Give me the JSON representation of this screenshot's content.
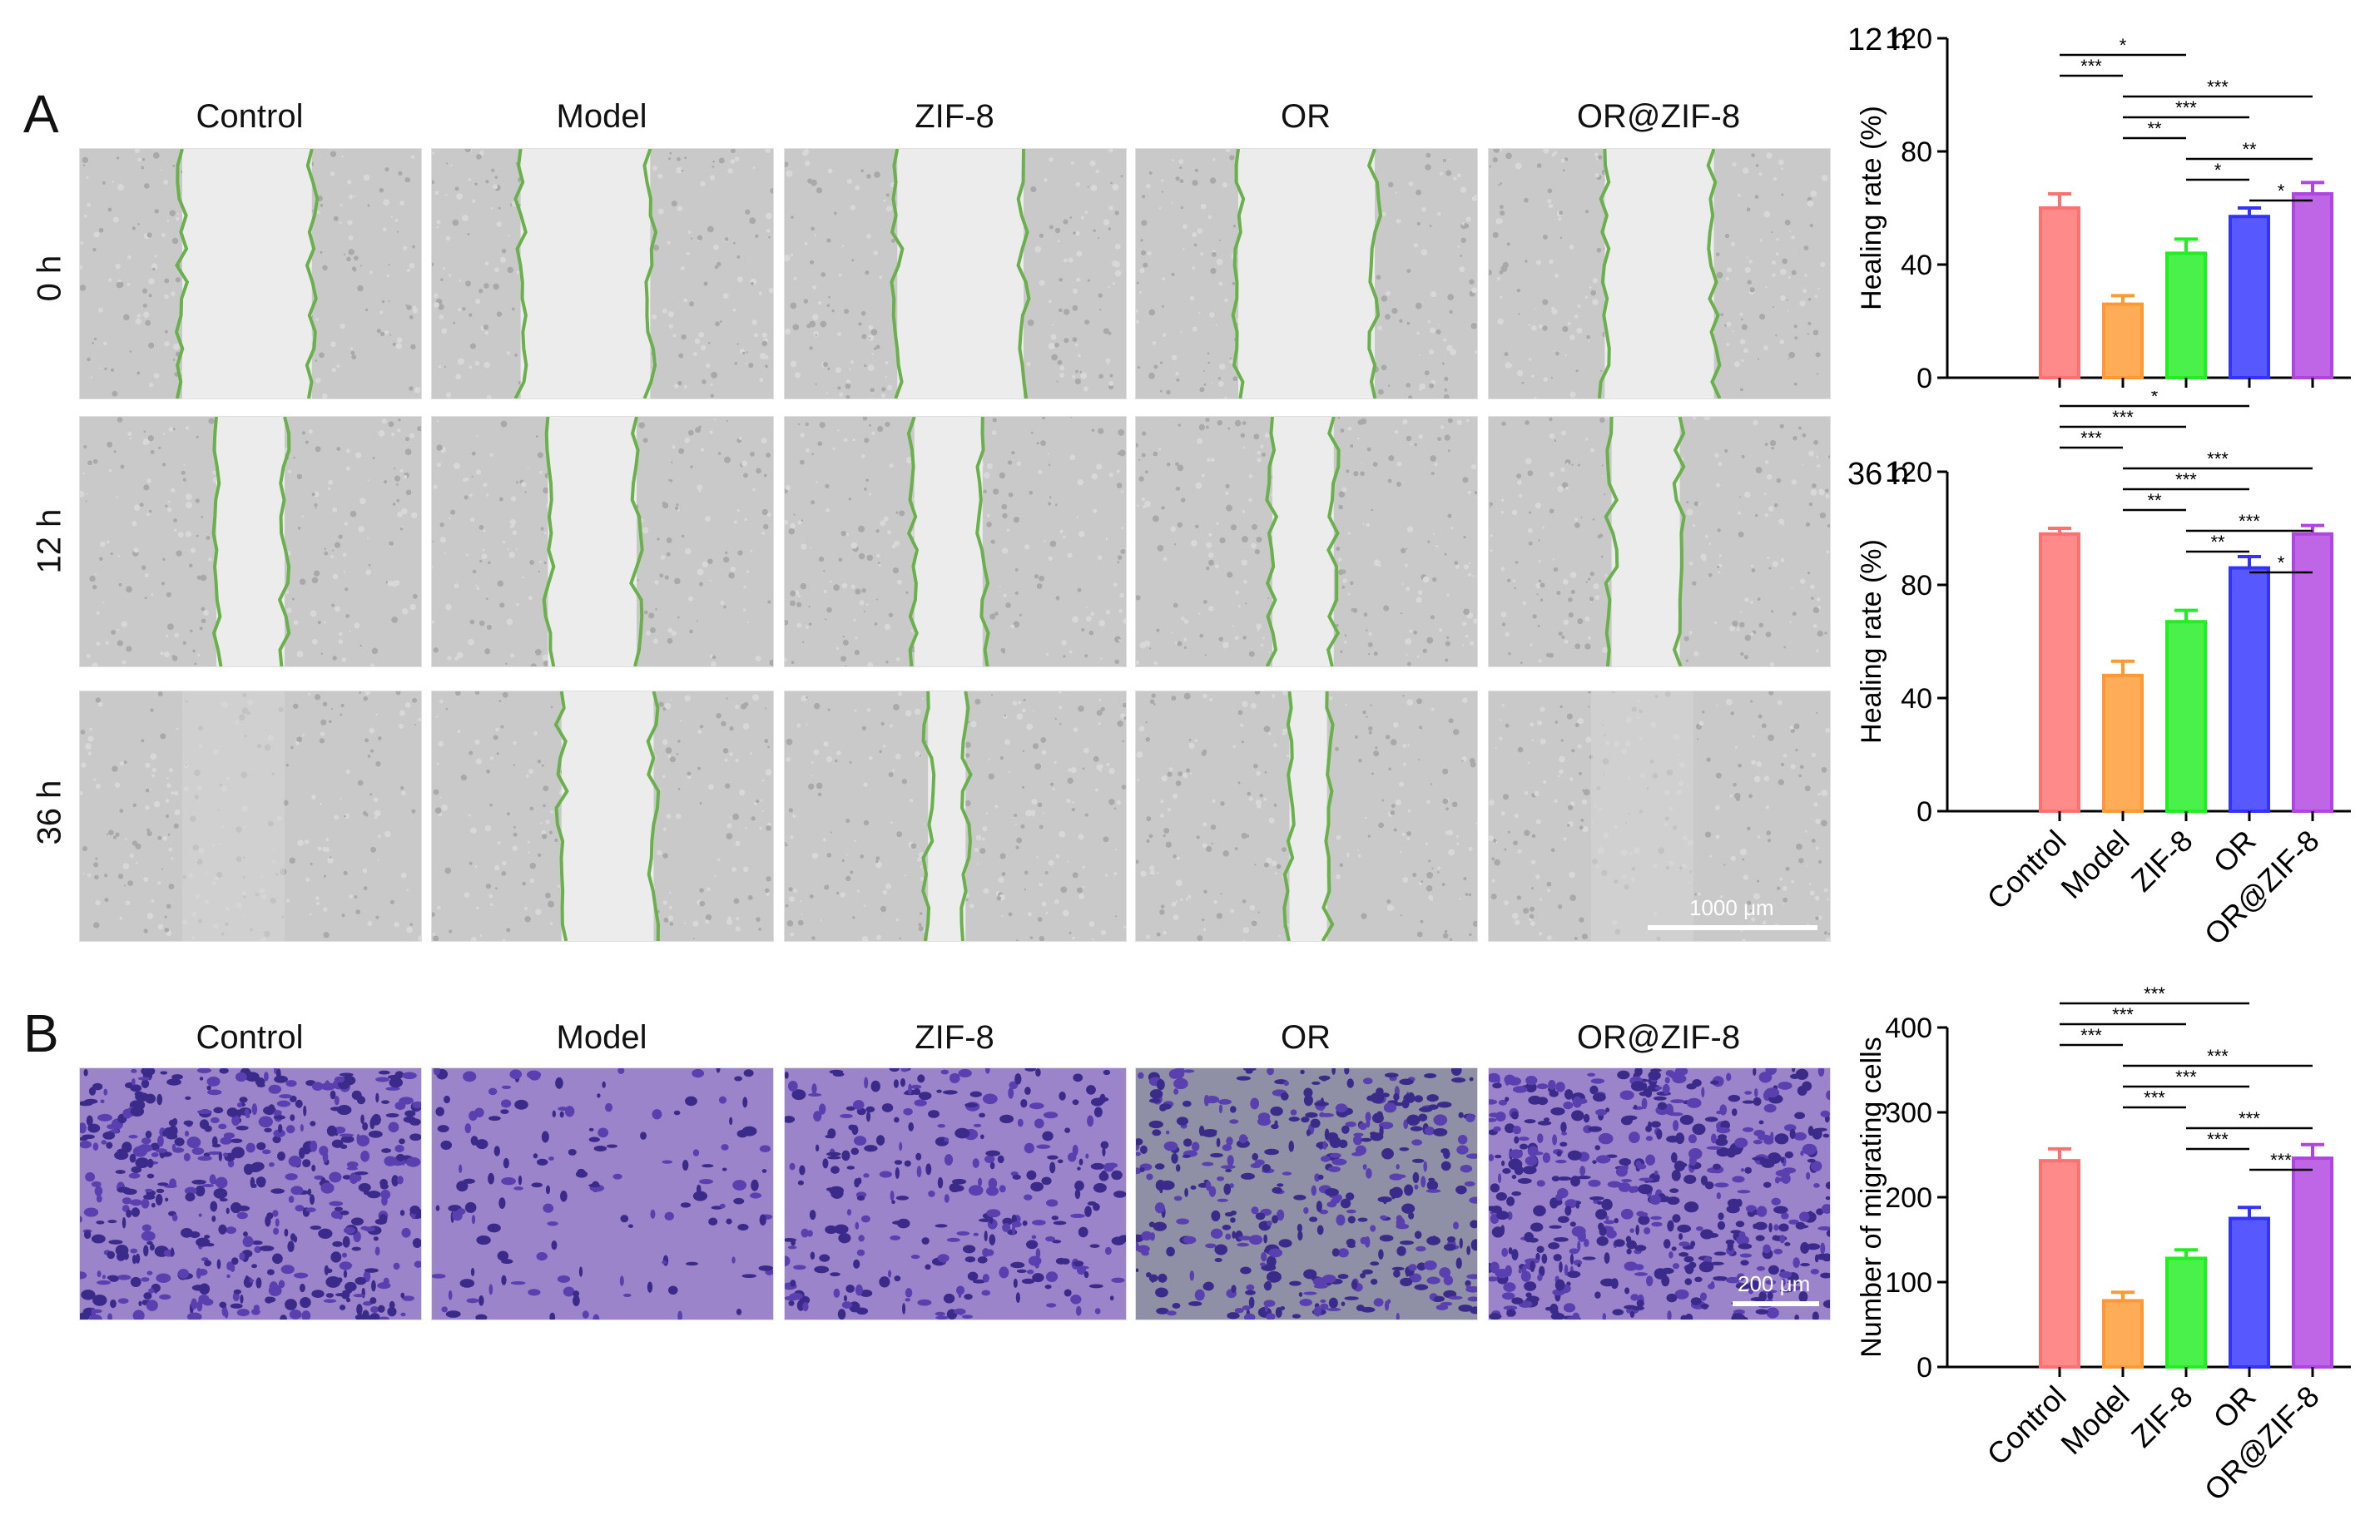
{
  "panel_a": {
    "letter": "A",
    "columns": [
      "Control",
      "Model",
      "ZIF-8",
      "OR",
      "OR@ZIF-8"
    ],
    "rows": [
      "0 h",
      "12 h",
      "36 h"
    ],
    "scalebar": "1000 μm"
  },
  "panel_b": {
    "letter": "B",
    "columns": [
      "Control",
      "Model",
      "ZIF-8",
      "OR",
      "OR@ZIF-8"
    ],
    "scalebar": "200 μm"
  },
  "colors": {
    "Control": "#ff7070",
    "Model": "#ff9a33",
    "ZIF-8": "#22ee22",
    "OR": "#3333ff",
    "OR@ZIF-8": "#b044e0",
    "wound_line": "#6ab04c"
  },
  "chart_data": [
    {
      "type": "bar",
      "title": "12 h",
      "ylabel": "Healing rate (%)",
      "categories": [
        "Control",
        "Model",
        "ZIF-8",
        "OR",
        "OR@ZIF-8"
      ],
      "values": [
        60,
        26,
        44,
        57,
        65
      ],
      "errors": [
        5,
        3,
        5,
        3,
        4
      ],
      "ylim": [
        0,
        120
      ],
      "yticks": [
        0,
        40,
        80,
        120
      ],
      "show_xticklabels": false,
      "significance": [
        {
          "from": 0,
          "to": 2,
          "label": "*"
        },
        {
          "from": 0,
          "to": 1,
          "label": "***"
        },
        {
          "from": 1,
          "to": 4,
          "label": "***"
        },
        {
          "from": 1,
          "to": 3,
          "label": "***"
        },
        {
          "from": 1,
          "to": 2,
          "label": "**"
        },
        {
          "from": 2,
          "to": 4,
          "label": "**"
        },
        {
          "from": 2,
          "to": 3,
          "label": "*"
        },
        {
          "from": 3,
          "to": 4,
          "label": "*"
        }
      ]
    },
    {
      "type": "bar",
      "title": "36 h",
      "ylabel": "Healing rate (%)",
      "categories": [
        "Control",
        "Model",
        "ZIF-8",
        "OR",
        "OR@ZIF-8"
      ],
      "values": [
        98,
        48,
        67,
        86,
        98
      ],
      "errors": [
        2,
        5,
        4,
        4,
        3
      ],
      "ylim": [
        0,
        120
      ],
      "yticks": [
        0,
        40,
        80,
        120
      ],
      "show_xticklabels": true,
      "significance": [
        {
          "from": 0,
          "to": 3,
          "label": "*"
        },
        {
          "from": 0,
          "to": 2,
          "label": "***"
        },
        {
          "from": 0,
          "to": 1,
          "label": "***"
        },
        {
          "from": 1,
          "to": 4,
          "label": "***"
        },
        {
          "from": 1,
          "to": 3,
          "label": "***"
        },
        {
          "from": 1,
          "to": 2,
          "label": "**"
        },
        {
          "from": 2,
          "to": 4,
          "label": "***"
        },
        {
          "from": 2,
          "to": 3,
          "label": "**"
        },
        {
          "from": 3,
          "to": 4,
          "label": "*"
        }
      ]
    },
    {
      "type": "bar",
      "title": "",
      "ylabel": "Number of migrating cells",
      "categories": [
        "Control",
        "Model",
        "ZIF-8",
        "OR",
        "OR@ZIF-8"
      ],
      "values": [
        243,
        78,
        128,
        175,
        246
      ],
      "errors": [
        14,
        10,
        10,
        13,
        16
      ],
      "ylim": [
        0,
        400
      ],
      "yticks": [
        0,
        100,
        200,
        300,
        400
      ],
      "show_xticklabels": true,
      "significance": [
        {
          "from": 0,
          "to": 3,
          "label": "***"
        },
        {
          "from": 0,
          "to": 2,
          "label": "***"
        },
        {
          "from": 0,
          "to": 1,
          "label": "***"
        },
        {
          "from": 1,
          "to": 4,
          "label": "***"
        },
        {
          "from": 1,
          "to": 3,
          "label": "***"
        },
        {
          "from": 1,
          "to": 2,
          "label": "***"
        },
        {
          "from": 2,
          "to": 4,
          "label": "***"
        },
        {
          "from": 2,
          "to": 3,
          "label": "***"
        },
        {
          "from": 3,
          "to": 4,
          "label": "***"
        }
      ]
    }
  ]
}
